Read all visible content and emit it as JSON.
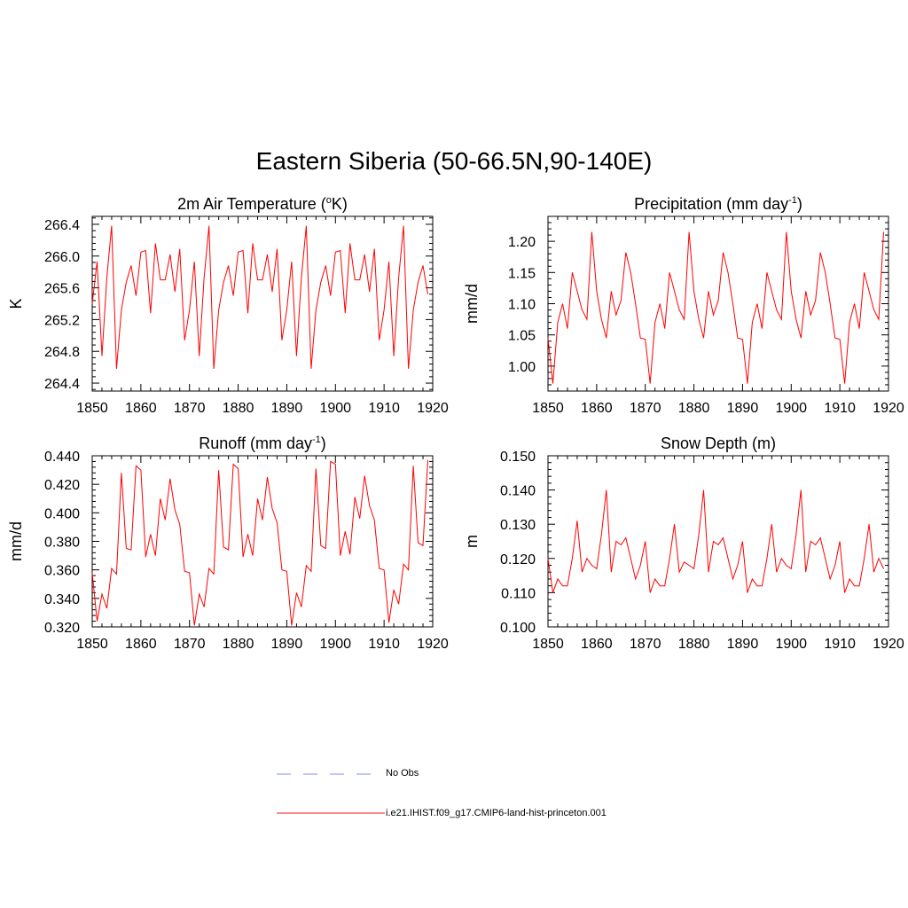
{
  "title": "Eastern Siberia (50-66.5N,90-140E)",
  "legend": {
    "obs_label": "No Obs",
    "obs_color": "#a0a0ff",
    "model_label": "i.e21.IHIST.f09_g17.CMIP6-land-hist-princeton.001",
    "model_color": "#ff4040"
  },
  "chart_data": [
    {
      "type": "line",
      "title": "2m Air Temperature (",
      "title_sup": "o",
      "title_after": "K)",
      "ylabel": "K",
      "xlim": [
        1850,
        1920
      ],
      "ylim": [
        264.3,
        266.5
      ],
      "xticks": [
        1850,
        1860,
        1870,
        1880,
        1890,
        1900,
        1910,
        1920
      ],
      "yticks": [
        "264.4",
        "264.8",
        "265.2",
        "265.6",
        "266.0",
        "266.4"
      ],
      "x_start": 1850,
      "series": [
        {
          "color": "#ff0000",
          "values": [
            265.4,
            265.93,
            264.74,
            265.73,
            266.38,
            264.58,
            265.32,
            265.67,
            265.88,
            265.5,
            266.05,
            266.07,
            265.28,
            266.16,
            265.7,
            265.7,
            266.02,
            265.55,
            266.09,
            264.94,
            265.32,
            265.93,
            264.74,
            265.73,
            266.38,
            264.58,
            265.32,
            265.67,
            265.88,
            265.5,
            266.05,
            266.07,
            265.28,
            266.16,
            265.7,
            265.7,
            266.02,
            265.55,
            266.09,
            264.94,
            265.32,
            265.93,
            264.74,
            265.73,
            266.38,
            264.58,
            265.32,
            265.67,
            265.88,
            265.5,
            266.05,
            266.07,
            265.28,
            266.16,
            265.7,
            265.7,
            266.02,
            265.55,
            266.09,
            264.94,
            265.32,
            265.93,
            264.74,
            265.73,
            266.38,
            264.58,
            265.32,
            265.67,
            265.88,
            265.52
          ]
        }
      ]
    },
    {
      "type": "line",
      "title": "Precipitation (mm day",
      "title_sup": "-1",
      "title_after": ")",
      "ylabel": "mm/d",
      "xlim": [
        1850,
        1920
      ],
      "ylim": [
        0.96,
        1.24
      ],
      "xticks": [
        1850,
        1860,
        1870,
        1880,
        1890,
        1900,
        1910,
        1920
      ],
      "yticks": [
        "1.00",
        "1.05",
        "1.10",
        "1.15",
        "1.20"
      ],
      "x_start": 1850,
      "series": [
        {
          "color": "#ff0000",
          "values": [
            1.045,
            0.972,
            1.07,
            1.1,
            1.06,
            1.15,
            1.12,
            1.09,
            1.075,
            1.215,
            1.12,
            1.075,
            1.045,
            1.12,
            1.082,
            1.105,
            1.182,
            1.15,
            1.1,
            1.045,
            1.043,
            0.972,
            1.07,
            1.1,
            1.06,
            1.15,
            1.12,
            1.09,
            1.075,
            1.215,
            1.12,
            1.075,
            1.045,
            1.12,
            1.082,
            1.105,
            1.182,
            1.15,
            1.1,
            1.045,
            1.043,
            0.972,
            1.07,
            1.1,
            1.06,
            1.15,
            1.12,
            1.09,
            1.075,
            1.215,
            1.12,
            1.075,
            1.045,
            1.12,
            1.082,
            1.105,
            1.182,
            1.15,
            1.1,
            1.045,
            1.043,
            0.972,
            1.07,
            1.1,
            1.06,
            1.15,
            1.12,
            1.09,
            1.075,
            1.215
          ]
        }
      ]
    },
    {
      "type": "line",
      "title": "Runoff (mm day",
      "title_sup": "-1",
      "title_after": ")",
      "ylabel": "mm/d",
      "xlim": [
        1850,
        1920
      ],
      "ylim": [
        0.32,
        0.44
      ],
      "xticks": [
        1850,
        1860,
        1870,
        1880,
        1890,
        1900,
        1910,
        1920
      ],
      "yticks": [
        "0.320",
        "0.340",
        "0.360",
        "0.380",
        "0.400",
        "0.420",
        "0.440"
      ],
      "x_start": 1850,
      "series": [
        {
          "color": "#ff0000",
          "values": [
            0.358,
            0.324,
            0.343,
            0.333,
            0.361,
            0.357,
            0.428,
            0.375,
            0.374,
            0.433,
            0.43,
            0.369,
            0.385,
            0.37,
            0.41,
            0.395,
            0.424,
            0.402,
            0.392,
            0.359,
            0.358,
            0.321,
            0.343,
            0.334,
            0.361,
            0.357,
            0.43,
            0.376,
            0.374,
            0.434,
            0.431,
            0.369,
            0.385,
            0.37,
            0.41,
            0.395,
            0.425,
            0.403,
            0.393,
            0.36,
            0.359,
            0.321,
            0.344,
            0.334,
            0.363,
            0.359,
            0.431,
            0.377,
            0.375,
            0.436,
            0.434,
            0.37,
            0.387,
            0.371,
            0.411,
            0.396,
            0.426,
            0.405,
            0.395,
            0.361,
            0.36,
            0.323,
            0.346,
            0.336,
            0.364,
            0.36,
            0.433,
            0.379,
            0.377,
            0.437
          ]
        }
      ]
    },
    {
      "type": "line",
      "title": "Snow Depth (m)",
      "title_sup": "",
      "title_after": "",
      "ylabel": "m",
      "xlim": [
        1850,
        1920
      ],
      "ylim": [
        0.1,
        0.15
      ],
      "xticks": [
        1850,
        1860,
        1870,
        1880,
        1890,
        1900,
        1910,
        1920
      ],
      "yticks": [
        "0.100",
        "0.110",
        "0.120",
        "0.130",
        "0.140",
        "0.150"
      ],
      "x_start": 1850,
      "series": [
        {
          "color": "#ff0000",
          "values": [
            0.12,
            0.11,
            0.114,
            0.112,
            0.112,
            0.12,
            0.131,
            0.116,
            0.12,
            0.118,
            0.117,
            0.127,
            0.14,
            0.116,
            0.125,
            0.124,
            0.126,
            0.12,
            0.114,
            0.118,
            0.125,
            0.11,
            0.114,
            0.112,
            0.112,
            0.12,
            0.13,
            0.116,
            0.119,
            0.118,
            0.117,
            0.127,
            0.14,
            0.116,
            0.125,
            0.124,
            0.126,
            0.12,
            0.114,
            0.118,
            0.125,
            0.11,
            0.114,
            0.112,
            0.112,
            0.12,
            0.13,
            0.116,
            0.12,
            0.118,
            0.117,
            0.127,
            0.14,
            0.116,
            0.125,
            0.124,
            0.126,
            0.12,
            0.114,
            0.118,
            0.125,
            0.11,
            0.114,
            0.112,
            0.112,
            0.12,
            0.13,
            0.116,
            0.12,
            0.117
          ]
        }
      ]
    }
  ]
}
